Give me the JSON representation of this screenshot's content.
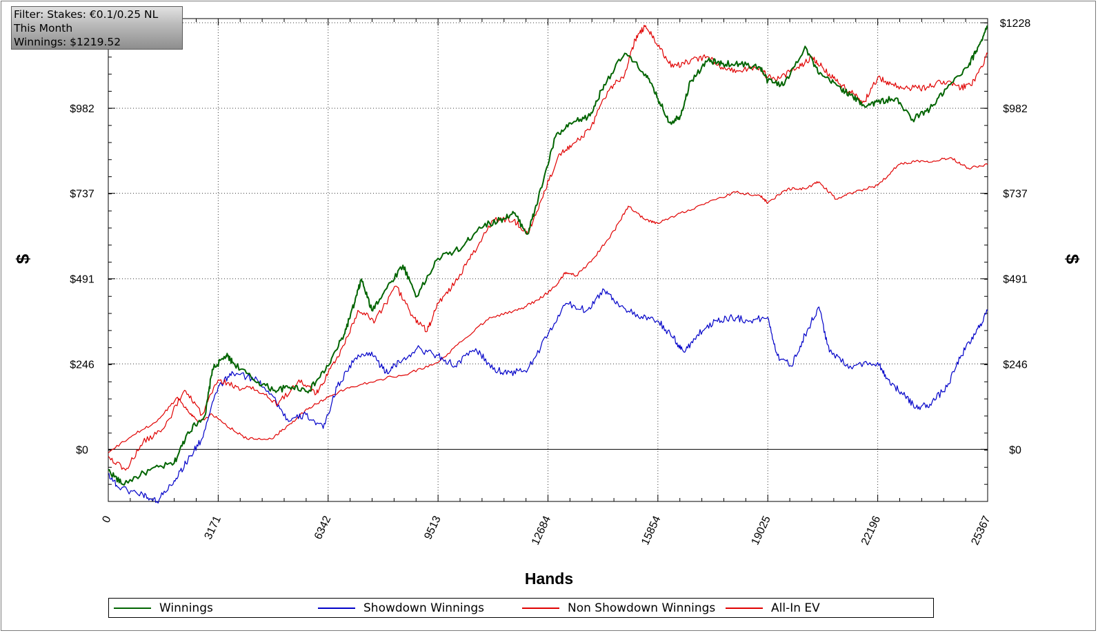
{
  "filter": {
    "line1": "Filter: Stakes: €0.1/0.25 NL",
    "line2": "This Month",
    "line3": "Winnings: $1219.52"
  },
  "colors": {
    "winnings": "#006400",
    "showdown": "#0000c8",
    "non_showdown": "#e00000",
    "allin_ev": "#e00000"
  },
  "chart_data": {
    "type": "line",
    "xlabel": "Hands",
    "ylabel": "$",
    "xlim": [
      0,
      25367
    ],
    "ylim": [
      -150,
      1240
    ],
    "x_ticks": [
      0,
      3171,
      6342,
      9513,
      12684,
      15854,
      19025,
      22196,
      25367
    ],
    "y_ticks": [
      0,
      246,
      491,
      737,
      982,
      1228
    ],
    "y_tick_labels": [
      "$0",
      "$246",
      "$491",
      "$737",
      "$982",
      "$1228"
    ],
    "grid": true,
    "legend_position": "bottom",
    "series": [
      {
        "name": "Winnings",
        "color": "#006400",
        "points": [
          [
            0,
            -60
          ],
          [
            400,
            -100
          ],
          [
            1200,
            -60
          ],
          [
            1900,
            -40
          ],
          [
            2300,
            50
          ],
          [
            2800,
            100
          ],
          [
            3000,
            230
          ],
          [
            3400,
            270
          ],
          [
            3600,
            250
          ],
          [
            4200,
            200
          ],
          [
            4800,
            170
          ],
          [
            5300,
            180
          ],
          [
            5800,
            170
          ],
          [
            6342,
            240
          ],
          [
            6800,
            330
          ],
          [
            7100,
            420
          ],
          [
            7300,
            490
          ],
          [
            7600,
            400
          ],
          [
            8000,
            460
          ],
          [
            8500,
            530
          ],
          [
            8900,
            440
          ],
          [
            9513,
            550
          ],
          [
            10200,
            580
          ],
          [
            10700,
            640
          ],
          [
            11300,
            660
          ],
          [
            11700,
            680
          ],
          [
            12100,
            620
          ],
          [
            12400,
            720
          ],
          [
            12900,
            900
          ],
          [
            13400,
            940
          ],
          [
            13900,
            960
          ],
          [
            14300,
            1050
          ],
          [
            14900,
            1140
          ],
          [
            15500,
            1080
          ],
          [
            15854,
            1010
          ],
          [
            16200,
            940
          ],
          [
            16500,
            960
          ],
          [
            16800,
            1060
          ],
          [
            17300,
            1120
          ],
          [
            17700,
            1110
          ],
          [
            18200,
            1110
          ],
          [
            18800,
            1100
          ],
          [
            19025,
            1060
          ],
          [
            19500,
            1050
          ],
          [
            20100,
            1160
          ],
          [
            20500,
            1080
          ],
          [
            21000,
            1050
          ],
          [
            21400,
            1020
          ],
          [
            21800,
            990
          ],
          [
            22196,
            1000
          ],
          [
            22700,
            1010
          ],
          [
            23200,
            950
          ],
          [
            23700,
            980
          ],
          [
            24200,
            1040
          ],
          [
            24800,
            1100
          ],
          [
            25100,
            1160
          ],
          [
            25367,
            1219
          ]
        ]
      },
      {
        "name": "Showdown Winnings",
        "color": "#0000c8",
        "points": [
          [
            0,
            -70
          ],
          [
            300,
            -110
          ],
          [
            1000,
            -130
          ],
          [
            1400,
            -150
          ],
          [
            1900,
            -90
          ],
          [
            2300,
            -30
          ],
          [
            2700,
            30
          ],
          [
            3171,
            180
          ],
          [
            3600,
            220
          ],
          [
            4300,
            200
          ],
          [
            4700,
            160
          ],
          [
            5200,
            80
          ],
          [
            5700,
            100
          ],
          [
            6200,
            60
          ],
          [
            6600,
            180
          ],
          [
            7100,
            260
          ],
          [
            7600,
            280
          ],
          [
            8000,
            220
          ],
          [
            8400,
            250
          ],
          [
            8900,
            290
          ],
          [
            9513,
            270
          ],
          [
            10000,
            240
          ],
          [
            10600,
            290
          ],
          [
            11100,
            230
          ],
          [
            11600,
            220
          ],
          [
            12100,
            230
          ],
          [
            12684,
            330
          ],
          [
            13200,
            420
          ],
          [
            13800,
            400
          ],
          [
            14300,
            460
          ],
          [
            14700,
            420
          ],
          [
            15300,
            380
          ],
          [
            15854,
            370
          ],
          [
            16300,
            320
          ],
          [
            16600,
            280
          ],
          [
            17000,
            330
          ],
          [
            17500,
            370
          ],
          [
            18000,
            380
          ],
          [
            18500,
            370
          ],
          [
            19025,
            380
          ],
          [
            19300,
            270
          ],
          [
            19700,
            240
          ],
          [
            20100,
            330
          ],
          [
            20500,
            410
          ],
          [
            20800,
            280
          ],
          [
            21400,
            240
          ],
          [
            22196,
            250
          ],
          [
            22500,
            200
          ],
          [
            22900,
            160
          ],
          [
            23300,
            120
          ],
          [
            23700,
            130
          ],
          [
            24200,
            180
          ],
          [
            24600,
            270
          ],
          [
            25000,
            330
          ],
          [
            25367,
            400
          ]
        ]
      },
      {
        "name": "Non Showdown Winnings",
        "color": "#e00000",
        "points": [
          [
            0,
            -10
          ],
          [
            700,
            40
          ],
          [
            1400,
            80
          ],
          [
            2000,
            150
          ],
          [
            2300,
            110
          ],
          [
            2600,
            80
          ],
          [
            3000,
            100
          ],
          [
            3400,
            70
          ],
          [
            4000,
            30
          ],
          [
            4700,
            30
          ],
          [
            5200,
            70
          ],
          [
            5800,
            120
          ],
          [
            6342,
            150
          ],
          [
            7000,
            180
          ],
          [
            7800,
            200
          ],
          [
            8700,
            220
          ],
          [
            9513,
            250
          ],
          [
            10300,
            320
          ],
          [
            11000,
            380
          ],
          [
            11800,
            400
          ],
          [
            12400,
            430
          ],
          [
            12900,
            470
          ],
          [
            13200,
            510
          ],
          [
            13500,
            500
          ],
          [
            14000,
            550
          ],
          [
            14600,
            630
          ],
          [
            15000,
            700
          ],
          [
            15500,
            660
          ],
          [
            15854,
            650
          ],
          [
            16500,
            680
          ],
          [
            17300,
            710
          ],
          [
            18100,
            740
          ],
          [
            18800,
            730
          ],
          [
            19025,
            710
          ],
          [
            19600,
            750
          ],
          [
            20100,
            750
          ],
          [
            20500,
            770
          ],
          [
            21000,
            720
          ],
          [
            21500,
            740
          ],
          [
            22196,
            760
          ],
          [
            22800,
            820
          ],
          [
            23300,
            830
          ],
          [
            23800,
            830
          ],
          [
            24300,
            840
          ],
          [
            24800,
            810
          ],
          [
            25367,
            820
          ]
        ]
      },
      {
        "name": "All-In EV",
        "color": "#e00000",
        "points": [
          [
            0,
            -20
          ],
          [
            500,
            -60
          ],
          [
            1000,
            20
          ],
          [
            1600,
            60
          ],
          [
            2200,
            170
          ],
          [
            2700,
            100
          ],
          [
            3171,
            200
          ],
          [
            3700,
            180
          ],
          [
            4300,
            170
          ],
          [
            4900,
            130
          ],
          [
            5500,
            200
          ],
          [
            6000,
            160
          ],
          [
            6342,
            220
          ],
          [
            6800,
            300
          ],
          [
            7200,
            400
          ],
          [
            7700,
            370
          ],
          [
            8300,
            470
          ],
          [
            8800,
            380
          ],
          [
            9200,
            340
          ],
          [
            9513,
            420
          ],
          [
            10000,
            480
          ],
          [
            10500,
            560
          ],
          [
            11100,
            660
          ],
          [
            11700,
            660
          ],
          [
            12100,
            620
          ],
          [
            12500,
            720
          ],
          [
            13000,
            850
          ],
          [
            13400,
            880
          ],
          [
            13900,
            920
          ],
          [
            14400,
            1030
          ],
          [
            14900,
            1080
          ],
          [
            15200,
            1180
          ],
          [
            15500,
            1220
          ],
          [
            15854,
            1160
          ],
          [
            16300,
            1100
          ],
          [
            16800,
            1120
          ],
          [
            17300,
            1130
          ],
          [
            17700,
            1100
          ],
          [
            18200,
            1090
          ],
          [
            18800,
            1100
          ],
          [
            19025,
            1070
          ],
          [
            19400,
            1070
          ],
          [
            19900,
            1100
          ],
          [
            20300,
            1130
          ],
          [
            20600,
            1100
          ],
          [
            21000,
            1060
          ],
          [
            21400,
            1030
          ],
          [
            21800,
            1000
          ],
          [
            22196,
            1070
          ],
          [
            22600,
            1050
          ],
          [
            23100,
            1040
          ],
          [
            23600,
            1040
          ],
          [
            24100,
            1060
          ],
          [
            24600,
            1040
          ],
          [
            25000,
            1060
          ],
          [
            25367,
            1140
          ]
        ]
      }
    ]
  }
}
